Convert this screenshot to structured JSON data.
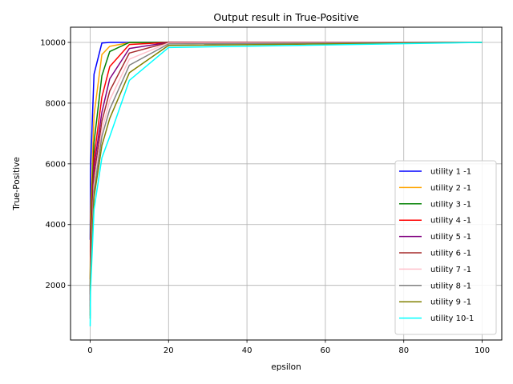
{
  "chart_data": {
    "type": "line",
    "title": "Output result in True-Positive",
    "xlabel": "epsilon",
    "ylabel": "True-Positive",
    "xlim": [
      -5,
      105
    ],
    "ylim": [
      200,
      10500
    ],
    "xticks": [
      0,
      20,
      40,
      60,
      80,
      100
    ],
    "yticks": [
      2000,
      4000,
      6000,
      8000,
      10000
    ],
    "grid": true,
    "legend_position": "bottom-right",
    "x": [
      0.01,
      0.1,
      1,
      3,
      5,
      10,
      20,
      100
    ],
    "series": [
      {
        "name": "utility 1 -1",
        "color": "#0000ff",
        "values": [
          3500,
          5800,
          8950,
          9980,
          10000,
          10000,
          10000,
          10000
        ]
      },
      {
        "name": "utility 2 -1",
        "color": "#ffa500",
        "values": [
          2200,
          4300,
          7600,
          9600,
          9870,
          9990,
          10000,
          10000
        ]
      },
      {
        "name": "utility 3 -1",
        "color": "#008000",
        "values": [
          1700,
          3600,
          6700,
          8900,
          9700,
          10000,
          10000,
          10000
        ]
      },
      {
        "name": "utility 4 -1",
        "color": "#ff0000",
        "values": [
          1500,
          3300,
          6200,
          8200,
          9200,
          9930,
          10000,
          10000
        ]
      },
      {
        "name": "utility 5 -1",
        "color": "#800080",
        "values": [
          1300,
          3000,
          5900,
          7700,
          8800,
          9800,
          10000,
          10000
        ]
      },
      {
        "name": "utility 6 -1",
        "color": "#a52a2a",
        "values": [
          1200,
          2800,
          5600,
          7400,
          8400,
          9650,
          10000,
          10000
        ]
      },
      {
        "name": "utility 7 -1",
        "color": "#ffc0cb",
        "values": [
          1100,
          2600,
          5300,
          7100,
          8100,
          9450,
          9980,
          10000
        ]
      },
      {
        "name": "utility 8 -1",
        "color": "#808080",
        "values": [
          1000,
          2400,
          5100,
          6900,
          7800,
          9250,
          9950,
          10000
        ]
      },
      {
        "name": "utility 9 -1",
        "color": "#808000",
        "values": [
          900,
          2200,
          4900,
          6600,
          7500,
          9000,
          9900,
          10000
        ]
      },
      {
        "name": "utility 10-1",
        "color": "#00ffff",
        "values": [
          650,
          1800,
          4500,
          6200,
          6900,
          8750,
          9830,
          10000
        ]
      }
    ]
  }
}
